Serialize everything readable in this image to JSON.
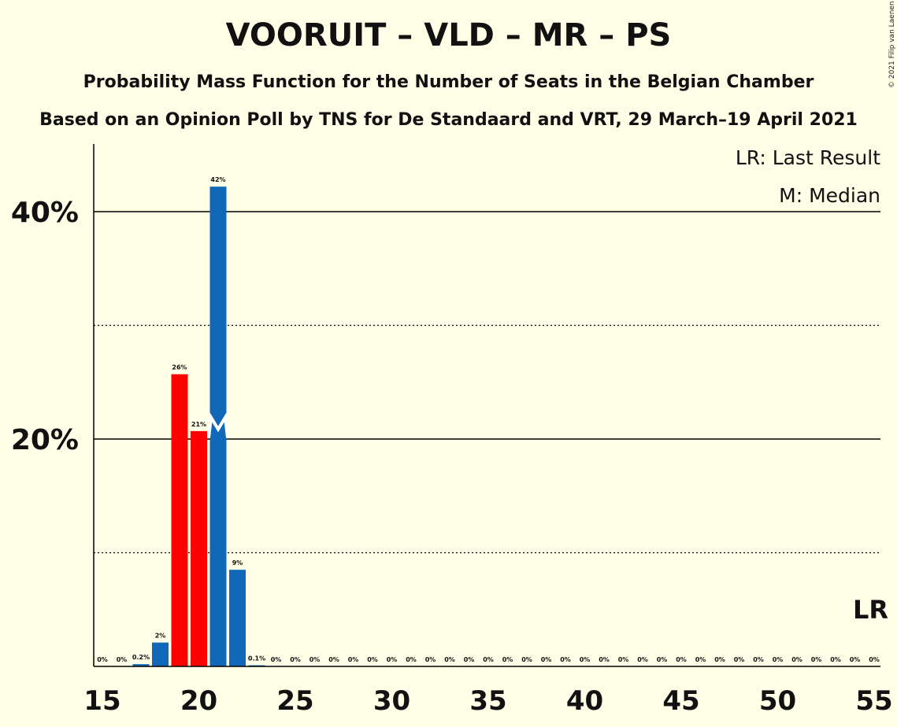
{
  "copyright": "© 2021 Filip van Laenen",
  "chart_data": {
    "type": "bar",
    "title": "VOORUIT – VLD – MR – PS",
    "subtitle": "Probability Mass Function for the Number of Seats in the Belgian Chamber",
    "subtitle2": "Based on an Opinion Poll by TNS for De Standaard and VRT, 29 March–19 April 2021",
    "xlabel": "",
    "ylabel": "",
    "xlim": [
      15,
      55
    ],
    "ylim": [
      0,
      46
    ],
    "x_ticks": [
      15,
      20,
      25,
      30,
      35,
      40,
      45,
      50,
      55
    ],
    "y_major_ticks": [
      {
        "value": 20,
        "label": "20%"
      },
      {
        "value": 40,
        "label": "40%"
      }
    ],
    "y_minor_gridlines": [
      10,
      30
    ],
    "median": 21,
    "median_marker": "M",
    "last_result": 55,
    "last_result_marker": "LR",
    "legend": [
      "LR: Last Result",
      "M: Median"
    ],
    "legend_position": "top-right",
    "colors": {
      "blue": "#1268B8",
      "red": "#FF0000",
      "background": "#FFFEE6"
    },
    "bars": [
      {
        "x": 15,
        "value": 0,
        "label": "0%",
        "color": "blue"
      },
      {
        "x": 16,
        "value": 0,
        "label": "0%",
        "color": "blue"
      },
      {
        "x": 17,
        "value": 0.2,
        "label": "0.2%",
        "color": "blue"
      },
      {
        "x": 18,
        "value": 2.1,
        "label": "2%",
        "color": "blue"
      },
      {
        "x": 19,
        "value": 25.7,
        "label": "26%",
        "color": "red"
      },
      {
        "x": 20,
        "value": 20.7,
        "label": "21%",
        "color": "red"
      },
      {
        "x": 21,
        "value": 42.2,
        "label": "42%",
        "color": "blue"
      },
      {
        "x": 22,
        "value": 8.5,
        "label": "9%",
        "color": "blue"
      },
      {
        "x": 23,
        "value": 0.1,
        "label": "0.1%",
        "color": "blue"
      },
      {
        "x": 24,
        "value": 0,
        "label": "0%",
        "color": "blue"
      },
      {
        "x": 25,
        "value": 0,
        "label": "0%",
        "color": "blue"
      },
      {
        "x": 26,
        "value": 0,
        "label": "0%",
        "color": "blue"
      },
      {
        "x": 27,
        "value": 0,
        "label": "0%",
        "color": "blue"
      },
      {
        "x": 28,
        "value": 0,
        "label": "0%",
        "color": "blue"
      },
      {
        "x": 29,
        "value": 0,
        "label": "0%",
        "color": "blue"
      },
      {
        "x": 30,
        "value": 0,
        "label": "0%",
        "color": "blue"
      },
      {
        "x": 31,
        "value": 0,
        "label": "0%",
        "color": "blue"
      },
      {
        "x": 32,
        "value": 0,
        "label": "0%",
        "color": "blue"
      },
      {
        "x": 33,
        "value": 0,
        "label": "0%",
        "color": "blue"
      },
      {
        "x": 34,
        "value": 0,
        "label": "0%",
        "color": "blue"
      },
      {
        "x": 35,
        "value": 0,
        "label": "0%",
        "color": "blue"
      },
      {
        "x": 36,
        "value": 0,
        "label": "0%",
        "color": "blue"
      },
      {
        "x": 37,
        "value": 0,
        "label": "0%",
        "color": "blue"
      },
      {
        "x": 38,
        "value": 0,
        "label": "0%",
        "color": "blue"
      },
      {
        "x": 39,
        "value": 0,
        "label": "0%",
        "color": "blue"
      },
      {
        "x": 40,
        "value": 0,
        "label": "0%",
        "color": "blue"
      },
      {
        "x": 41,
        "value": 0,
        "label": "0%",
        "color": "blue"
      },
      {
        "x": 42,
        "value": 0,
        "label": "0%",
        "color": "blue"
      },
      {
        "x": 43,
        "value": 0,
        "label": "0%",
        "color": "blue"
      },
      {
        "x": 44,
        "value": 0,
        "label": "0%",
        "color": "blue"
      },
      {
        "x": 45,
        "value": 0,
        "label": "0%",
        "color": "blue"
      },
      {
        "x": 46,
        "value": 0,
        "label": "0%",
        "color": "blue"
      },
      {
        "x": 47,
        "value": 0,
        "label": "0%",
        "color": "blue"
      },
      {
        "x": 48,
        "value": 0,
        "label": "0%",
        "color": "blue"
      },
      {
        "x": 49,
        "value": 0,
        "label": "0%",
        "color": "blue"
      },
      {
        "x": 50,
        "value": 0,
        "label": "0%",
        "color": "blue"
      },
      {
        "x": 51,
        "value": 0,
        "label": "0%",
        "color": "blue"
      },
      {
        "x": 52,
        "value": 0,
        "label": "0%",
        "color": "blue"
      },
      {
        "x": 53,
        "value": 0,
        "label": "0%",
        "color": "blue"
      },
      {
        "x": 54,
        "value": 0,
        "label": "0%",
        "color": "blue"
      },
      {
        "x": 55,
        "value": 0,
        "label": "0%",
        "color": "blue"
      }
    ]
  }
}
